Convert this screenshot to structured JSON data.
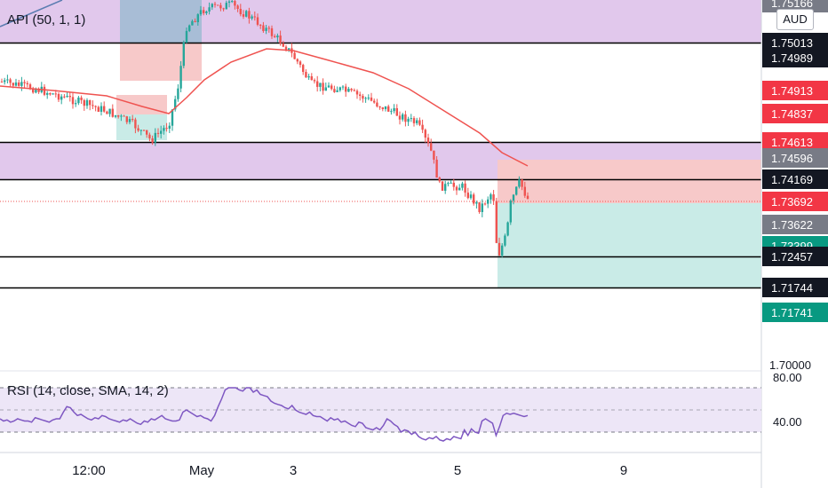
{
  "indicator_label": "API (50, 1, 1)",
  "rsi_label": "RSI (14, close, SMA, 14, 2)",
  "currency": "AUD",
  "colors": {
    "up": "#26a69a",
    "down": "#ef5350",
    "sma": "#ef5350",
    "rsi": "#7e57c2",
    "zone_purple": "#e1c8ec",
    "zone_red": "#f7c9c9",
    "zone_green": "#c9ebe7",
    "zone_blue": "#a8bdd6",
    "hline": "#000000"
  },
  "chart_data": {
    "type": "candlestick",
    "x_ticks": [
      "12:00",
      "May",
      "3",
      "5",
      "9"
    ],
    "y_ticks": [
      "1.70000"
    ],
    "price_labels": [
      {
        "text": "1.75166",
        "price": 1.75166,
        "kind": "gray"
      },
      {
        "text": "1.75013",
        "price": 1.75013,
        "kind": "black"
      },
      {
        "text": "1.74989",
        "price": 1.74989,
        "kind": "black"
      },
      {
        "text": "1.74913",
        "price": 1.74913,
        "kind": "red"
      },
      {
        "text": "1.74837",
        "price": 1.74837,
        "kind": "red"
      },
      {
        "text": "1.74613",
        "price": 1.74613,
        "kind": "red"
      },
      {
        "text": "1.74596",
        "price": 1.74596,
        "kind": "gray"
      },
      {
        "text": "1.74169",
        "price": 1.74169,
        "kind": "black"
      },
      {
        "text": "1.73692",
        "price": 1.73692,
        "kind": "red"
      },
      {
        "text": "1.73622",
        "price": 1.73622,
        "kind": "gray"
      },
      {
        "text": "1.73399",
        "price": 1.73399,
        "kind": "green"
      },
      {
        "text": "1.72457",
        "price": 1.72457,
        "kind": "black"
      },
      {
        "text": "1.71744",
        "price": 1.71744,
        "kind": "black"
      },
      {
        "text": "1.71741",
        "price": 1.71741,
        "kind": "green"
      }
    ],
    "horizontal_lines": [
      1.75013,
      1.74613,
      1.74169,
      1.72457,
      1.71744
    ],
    "current_price": 1.73692,
    "rsi": {
      "levels": [
        80,
        60,
        40
      ],
      "tick_labels": [
        "80.00",
        "40.00"
      ],
      "values": [
        52,
        50,
        51,
        49,
        50,
        52,
        51,
        50,
        50,
        49,
        53,
        52,
        51,
        50,
        49,
        51,
        52,
        52,
        58,
        63,
        62,
        58,
        55,
        56,
        54,
        52,
        51,
        53,
        52,
        55,
        54,
        52,
        51,
        50,
        49,
        51,
        50,
        52,
        50,
        48,
        47,
        50,
        49,
        52,
        51,
        53,
        55,
        52,
        51,
        50,
        50,
        51,
        58,
        60,
        58,
        56,
        54,
        55,
        53,
        52,
        50,
        55,
        63,
        70,
        78,
        80,
        80,
        80,
        78,
        77,
        80,
        80,
        76,
        78,
        74,
        73,
        72,
        68,
        66,
        65,
        64,
        62,
        61,
        64,
        60,
        58,
        57,
        56,
        58,
        55,
        54,
        54,
        52,
        50,
        53,
        51,
        52,
        49,
        50,
        48,
        46,
        45,
        49,
        48,
        44,
        43,
        42,
        44,
        42,
        46,
        52,
        50,
        47,
        45,
        40,
        42,
        41,
        38,
        40,
        36,
        34,
        33,
        35,
        34,
        36,
        33,
        32,
        34,
        33,
        36,
        35,
        34,
        42,
        37,
        43,
        40,
        39,
        50,
        52,
        50,
        48,
        37,
        45,
        55,
        57,
        56,
        57,
        56,
        55,
        54,
        55
      ]
    }
  }
}
